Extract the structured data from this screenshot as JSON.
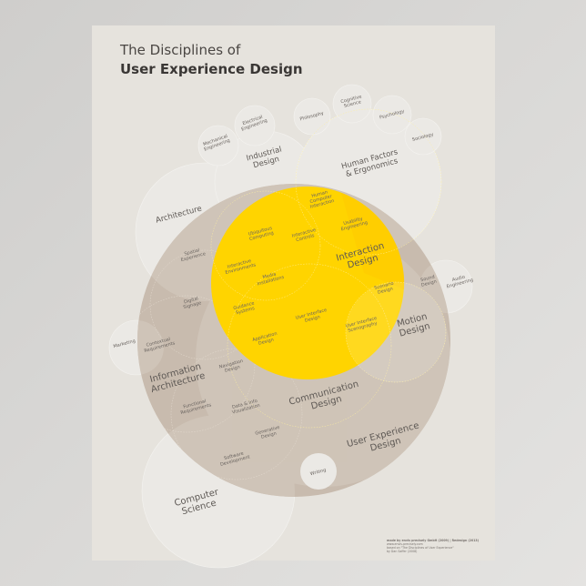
{
  "title": {
    "line1": "The Disciplines of",
    "line2": "User Experience Design"
  },
  "colors": {
    "poster": "#e6e3dd",
    "ux": "#c8bbae",
    "ux_dark": "#bcae9f",
    "yellow": "#ffd400",
    "outer": "#ebe9e5"
  },
  "circles": {
    "mechanical": [
      "Mechanical",
      "Engineering"
    ],
    "electrical": [
      "Electrical",
      "Engineering"
    ],
    "philosophy": [
      "Philosophy"
    ],
    "cognitive": [
      "Cognitive",
      "Science"
    ],
    "psychology": [
      "Psychology"
    ],
    "sociology": [
      "Sociology"
    ],
    "industrial": [
      "Industrial",
      "Design"
    ],
    "human_factors": [
      "Human Factors",
      "& Ergonomics"
    ],
    "architecture": [
      "Architecture"
    ],
    "hci": [
      "Human",
      "Computer",
      "Interaction"
    ],
    "usability": [
      "Usability",
      "Engineering"
    ],
    "ubiquitous": [
      "Ubiquitous",
      "Computing"
    ],
    "interactive_controls": [
      "Interactive",
      "Controls"
    ],
    "interaction": [
      "Interaction",
      "Design"
    ],
    "spatial": [
      "Spatial",
      "Experience"
    ],
    "interactive_env": [
      "Interactive",
      "Environments"
    ],
    "media": [
      "Media",
      "Installations"
    ],
    "sound": [
      "Sound",
      "Design"
    ],
    "audio": [
      "Audio",
      "Engineering"
    ],
    "digital_signage": [
      "Digital",
      "Signage"
    ],
    "guidance": [
      "Guidance",
      "Systems"
    ],
    "ui_design": [
      "User Interface",
      "Design"
    ],
    "scenario": [
      "Scenario",
      "Design"
    ],
    "ui_scenography": [
      "User Interface",
      "Scenography"
    ],
    "motion": [
      "Motion",
      "Design"
    ],
    "marketing": [
      "Marketing"
    ],
    "contextual": [
      "Contextual",
      "Requirements"
    ],
    "application": [
      "Application",
      "Design"
    ],
    "navigation": [
      "Navigation",
      "Design"
    ],
    "info_arch": [
      "Information",
      "Architecture"
    ],
    "functional": [
      "Functional",
      "Requirements"
    ],
    "data_viz": [
      "Data & Info",
      "Visualization"
    ],
    "communication": [
      "Communication",
      "Design"
    ],
    "generative": [
      "Generative",
      "Design"
    ],
    "ux": [
      "User Experience",
      "Design"
    ],
    "software": [
      "Software",
      "Development"
    ],
    "writing": [
      "Writing"
    ],
    "cs": [
      "Computer",
      "Science"
    ]
  },
  "footer": [
    "made by envis precisely GmbH (2009) | Redesign (2013)",
    "www.envis-precisely.com",
    "based on \"The Disciplines of User Experience\"",
    "by Dan Saffer (2008)"
  ]
}
